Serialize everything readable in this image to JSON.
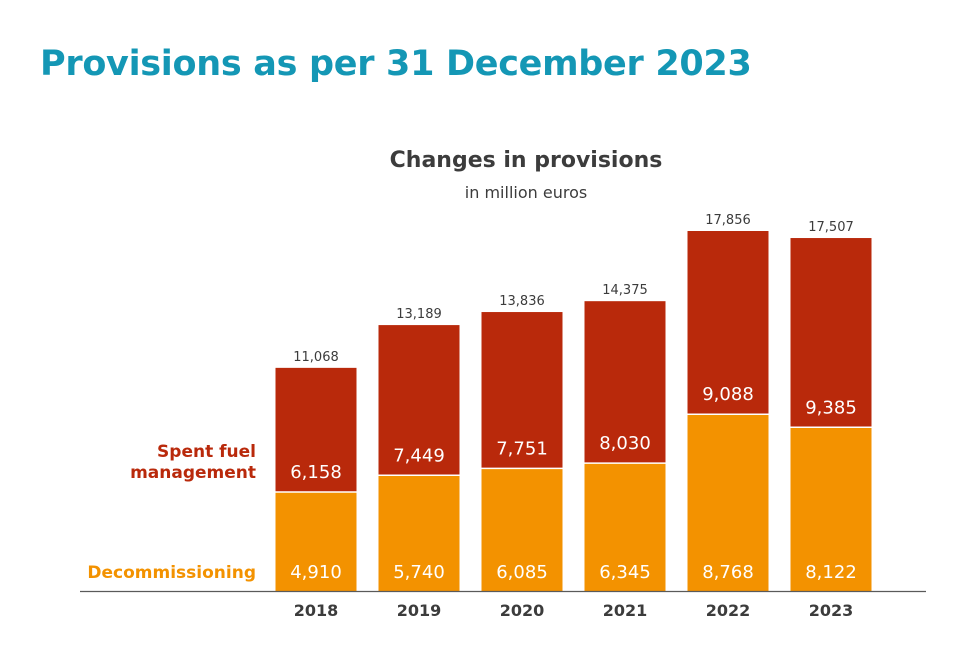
{
  "page": {
    "title": "Provisions as per 31 December 2023"
  },
  "chart_data": {
    "type": "bar",
    "stacked": true,
    "title": "Changes in provisions",
    "subtitle": "in million euros",
    "categories": [
      "2018",
      "2019",
      "2020",
      "2021",
      "2022",
      "2023"
    ],
    "series": [
      {
        "name": "Decommissioning",
        "values": [
          4910,
          5740,
          6085,
          6345,
          8768,
          8122
        ],
        "labels": [
          "4,910",
          "5,740",
          "6,085",
          "6,345",
          "8,768",
          "8,122"
        ],
        "color": "#f39200"
      },
      {
        "name": "Spent fuel management",
        "values": [
          6158,
          7449,
          7751,
          8030,
          9088,
          9385
        ],
        "labels": [
          "6,158",
          "7,449",
          "7,751",
          "8,030",
          "9,088",
          "9,385"
        ],
        "color": "#b9290b"
      }
    ],
    "totals": [
      11068,
      13189,
      13836,
      14375,
      17856,
      17507
    ],
    "total_labels": [
      "11,068",
      "13,189",
      "13,836",
      "14,375",
      "17,856",
      "17,507"
    ],
    "legend": [
      {
        "lines": [
          "Spent fuel",
          "management"
        ],
        "color": "#b9290b"
      },
      {
        "lines": [
          "Decommissioning"
        ],
        "color": "#f39200"
      }
    ],
    "ylim": [
      0,
      20000
    ],
    "grid": false
  }
}
